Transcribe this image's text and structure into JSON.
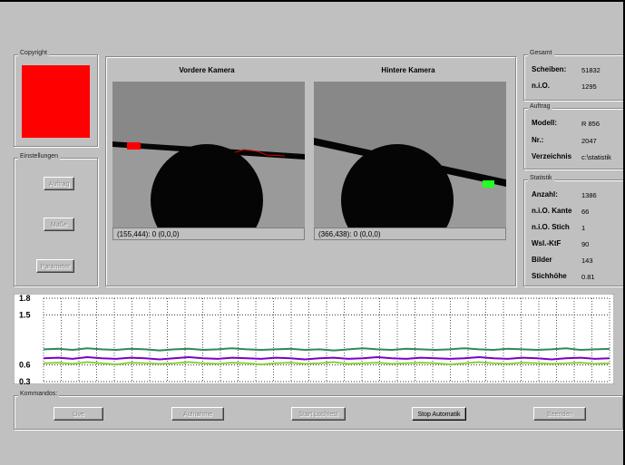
{
  "left_panel": {
    "copyright_title": "Copyright",
    "settings_title": "Einstellungen",
    "buttons": [
      "Auftrag",
      "Maße",
      "Parameter"
    ]
  },
  "cameras": [
    {
      "title": "Vordere Kamera",
      "status": "(155,444): 0 (0,0,0)"
    },
    {
      "title": "Hintere Kamera",
      "status": "(366,438): 0 (0,0,0)"
    }
  ],
  "gesamt": {
    "title": "Gesamt",
    "rows": [
      [
        "Scheiben:",
        "51832"
      ],
      [
        "n.i.O.",
        "1295"
      ]
    ]
  },
  "auftrag": {
    "title": "Auftrag",
    "rows": [
      [
        "Modell:",
        "R 856"
      ],
      [
        "Nr.:",
        "2047"
      ],
      [
        "Verzeichnis",
        "c:\\statistik"
      ]
    ]
  },
  "statistik": {
    "title": "Statistik",
    "rows": [
      [
        "Anzahl:",
        "1386"
      ],
      [
        "n.i.O. Kante",
        "66"
      ],
      [
        "n.i.O. Stich",
        "1"
      ],
      [
        "Wsl.-KtF",
        "90"
      ],
      [
        "Bilder",
        "143"
      ],
      [
        "Stichhöhe",
        "0.81"
      ]
    ]
  },
  "chart_data": {
    "type": "line",
    "ylim": [
      0.3,
      1.8
    ],
    "yticks": [
      0.3,
      0.6,
      1.5,
      1.8
    ],
    "series": [
      {
        "color": "#2e8b57",
        "values": [
          0.88,
          0.89,
          0.87,
          0.9,
          0.88,
          0.87,
          0.89,
          0.88,
          0.86,
          0.88,
          0.89,
          0.87,
          0.88,
          0.9,
          0.88,
          0.87,
          0.88,
          0.89,
          0.87,
          0.88,
          0.86,
          0.88,
          0.9,
          0.88,
          0.87,
          0.89,
          0.88,
          0.87,
          0.88,
          0.9,
          0.88,
          0.87,
          0.89,
          0.88,
          0.87,
          0.88,
          0.9,
          0.87,
          0.88,
          0.89
        ]
      },
      {
        "color": "#7b00c8",
        "values": [
          0.72,
          0.73,
          0.71,
          0.74,
          0.72,
          0.71,
          0.73,
          0.72,
          0.7,
          0.72,
          0.74,
          0.72,
          0.71,
          0.73,
          0.72,
          0.71,
          0.73,
          0.72,
          0.7,
          0.72,
          0.73,
          0.71,
          0.72,
          0.74,
          0.72,
          0.71,
          0.73,
          0.72,
          0.71,
          0.72,
          0.74,
          0.72,
          0.71,
          0.73,
          0.72,
          0.7,
          0.72,
          0.73,
          0.71,
          0.72
        ]
      },
      {
        "color": "#8ccf3c",
        "values": [
          0.63,
          0.64,
          0.62,
          0.65,
          0.63,
          0.61,
          0.64,
          0.63,
          0.62,
          0.63,
          0.65,
          0.63,
          0.62,
          0.64,
          0.63,
          0.61,
          0.63,
          0.64,
          0.62,
          0.63,
          0.65,
          0.62,
          0.63,
          0.64,
          0.62,
          0.63,
          0.64,
          0.63,
          0.61,
          0.63,
          0.65,
          0.63,
          0.62,
          0.64,
          0.63,
          0.62,
          0.63,
          0.64,
          0.62,
          0.63
        ]
      }
    ]
  },
  "commands": {
    "title": "Kommandos:",
    "buttons": [
      "Live",
      "Aufnahme",
      "Start Lochtest",
      "Stop Automatik",
      "Beenden"
    ]
  }
}
